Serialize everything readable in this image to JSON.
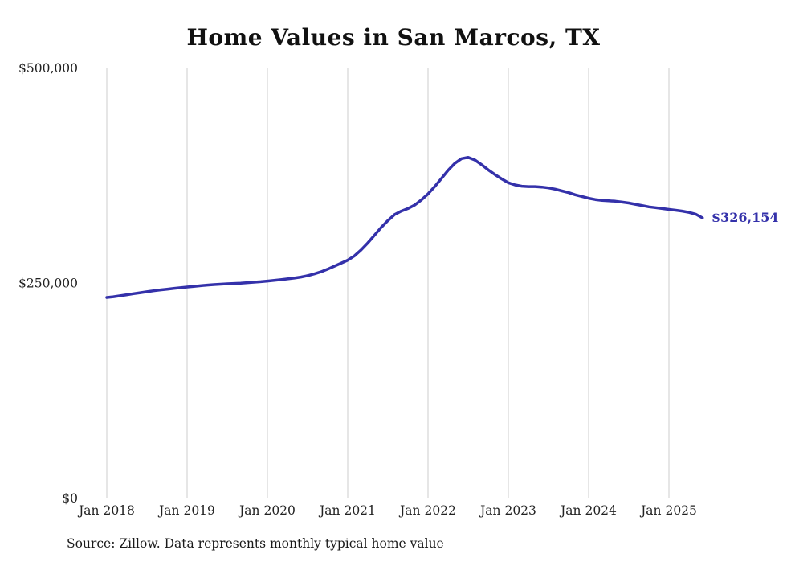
{
  "footer": {
    "source_note": "Source: Zillow. Data represents monthly typical home value"
  },
  "chart_data": {
    "type": "line",
    "title": "Home Values in San Marcos, TX",
    "xlabel": "",
    "ylabel": "",
    "x_start": "Jan 2018",
    "frequency": "monthly",
    "ylim": [
      0,
      500000
    ],
    "grid": "vertical-only",
    "legend_position": "none",
    "line_color": "#3431aa",
    "gridline_color": "#cccccc",
    "end_label": "$326,154",
    "end_label_color": "#3431aa",
    "y_ticks": [
      {
        "value": 0,
        "label": "$0"
      },
      {
        "value": 250000,
        "label": "$250,000"
      },
      {
        "value": 500000,
        "label": "$500,000"
      }
    ],
    "x_ticks": [
      "Jan 2018",
      "Jan 2019",
      "Jan 2020",
      "Jan 2021",
      "Jan 2022",
      "Jan 2023",
      "Jan 2024",
      "Jan 2025"
    ],
    "series": [
      {
        "name": "Typical home value",
        "values": [
          233600,
          234500,
          235600,
          236800,
          238000,
          239200,
          240300,
          241400,
          242400,
          243300,
          244100,
          245000,
          245800,
          246500,
          247300,
          248000,
          248600,
          249100,
          249500,
          249900,
          250300,
          250800,
          251400,
          252000,
          252700,
          253500,
          254300,
          255200,
          256200,
          257400,
          259000,
          261000,
          263500,
          266500,
          270000,
          273500,
          277000,
          282000,
          289000,
          297000,
          306000,
          315000,
          323000,
          330000,
          334000,
          337000,
          341000,
          347000,
          354000,
          362500,
          372000,
          381500,
          389500,
          395000,
          396500,
          393500,
          388000,
          382000,
          376500,
          371500,
          367000,
          364500,
          363000,
          362500,
          362500,
          362000,
          361000,
          359500,
          357500,
          355500,
          353000,
          351000,
          349000,
          347500,
          346500,
          346000,
          345500,
          344500,
          343500,
          342000,
          340500,
          339000,
          338000,
          337000,
          336000,
          335000,
          334000,
          332500,
          330500,
          326154
        ]
      }
    ],
    "latest_value": 326154
  }
}
